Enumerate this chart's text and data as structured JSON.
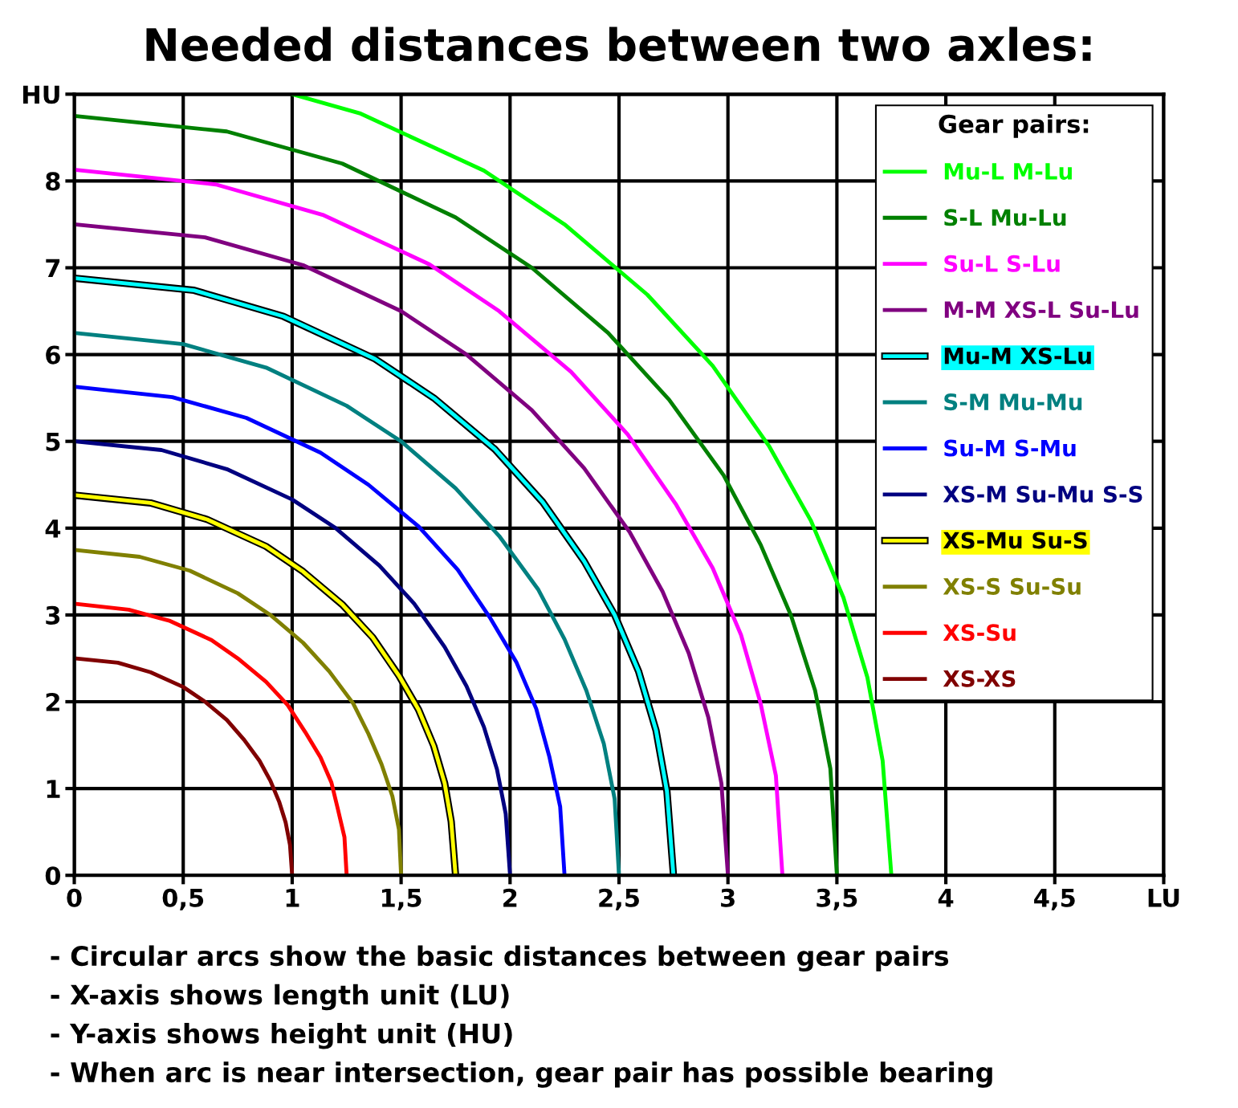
{
  "chart_data": {
    "type": "line",
    "title": "Needed distances between two axles:",
    "xlim": [
      0,
      5
    ],
    "ylim": [
      0,
      9
    ],
    "xticks": [
      0,
      {
        "value": 0.5,
        "label": "0,5"
      },
      1,
      {
        "value": 1.5,
        "label": "1,5"
      },
      2,
      {
        "value": 2.5,
        "label": "2,5"
      },
      3,
      {
        "value": 3.5,
        "label": "3,5"
      },
      4,
      {
        "value": 4.5,
        "label": "4,5"
      },
      {
        "value": 5,
        "label": "LU"
      }
    ],
    "yticks": [
      0,
      1,
      2,
      3,
      4,
      5,
      6,
      7,
      8,
      {
        "value": 9,
        "label": "HU"
      }
    ],
    "grid": true,
    "legend": "top right",
    "legend_title": "Gear pairs:",
    "marker": "none",
    "line_style": "solid",
    "series": [
      {
        "name": "Mu-L M-Lu",
        "color": "#00ff00",
        "x": [
          1,
          1.31,
          1.88,
          2.25,
          2.63,
          2.93,
          3.19,
          3.38,
          3.53,
          3.64,
          3.71,
          3.75
        ],
        "values": [
          9,
          8.78,
          8.12,
          7.5,
          6.69,
          5.87,
          4.94,
          4.09,
          3.2,
          2.28,
          1.32,
          0
        ]
      },
      {
        "name": "S-L Mu-Lu",
        "color": "#008000",
        "x": [
          0,
          0.7,
          1.23,
          1.75,
          2.1,
          2.45,
          2.73,
          2.98,
          3.15,
          3.29,
          3.4,
          3.47,
          3.5
        ],
        "values": [
          8.75,
          8.57,
          8.2,
          7.58,
          7,
          6.25,
          5.48,
          4.61,
          3.81,
          2.99,
          2.13,
          1.23,
          0
        ]
      },
      {
        "name": "Su-L S-Lu",
        "color": "#ff00ff",
        "x": [
          0,
          0.65,
          1.14,
          1.63,
          1.95,
          2.28,
          2.54,
          2.76,
          2.93,
          3.06,
          3.15,
          3.22,
          3.25
        ],
        "values": [
          8.13,
          7.96,
          7.61,
          7.04,
          6.5,
          5.8,
          5.08,
          4.28,
          3.54,
          2.77,
          1.98,
          1.15,
          0
        ]
      },
      {
        "name": "M-M XS-L Su-Lu",
        "color": "#800080",
        "x": [
          0,
          0.6,
          1.05,
          1.5,
          1.8,
          2.1,
          2.34,
          2.55,
          2.7,
          2.82,
          2.91,
          2.97,
          3
        ],
        "values": [
          7.5,
          7.35,
          7.03,
          6.5,
          6,
          5.36,
          4.69,
          3.95,
          3.27,
          2.56,
          1.82,
          1.06,
          0
        ]
      },
      {
        "name": "Mu-M XS-Lu",
        "color": "#00ffff",
        "x": [
          0,
          0.55,
          0.96,
          1.38,
          1.65,
          1.93,
          2.15,
          2.34,
          2.48,
          2.59,
          2.67,
          2.72,
          2.75
        ],
        "values": [
          6.88,
          6.74,
          6.44,
          5.95,
          5.5,
          4.91,
          4.3,
          3.62,
          3.0,
          2.35,
          1.67,
          0.97,
          0
        ]
      },
      {
        "name": "S-M Mu-Mu",
        "color": "#008080",
        "x": [
          0,
          0.5,
          0.88,
          1.25,
          1.5,
          1.75,
          1.95,
          2.13,
          2.25,
          2.35,
          2.43,
          2.48,
          2.5
        ],
        "values": [
          6.25,
          6.12,
          5.85,
          5.41,
          5,
          4.46,
          3.91,
          3.29,
          2.72,
          2.13,
          1.52,
          0.88,
          0
        ]
      },
      {
        "name": "Su-M S-Mu",
        "color": "#0000ff",
        "x": [
          0,
          0.45,
          0.79,
          1.13,
          1.35,
          1.58,
          1.76,
          1.91,
          2.03,
          2.12,
          2.18,
          2.23,
          2.25
        ],
        "values": [
          5.63,
          5.51,
          5.27,
          4.87,
          4.5,
          4.02,
          3.52,
          2.96,
          2.45,
          1.92,
          1.37,
          0.79,
          0
        ]
      },
      {
        "name": "XS-M Su-Mu S-S",
        "color": "#000080",
        "x": [
          0,
          0.4,
          0.7,
          1,
          1.2,
          1.4,
          1.56,
          1.7,
          1.8,
          1.88,
          1.94,
          1.98,
          2
        ],
        "values": [
          5,
          4.9,
          4.68,
          4.33,
          4,
          3.57,
          3.13,
          2.63,
          2.18,
          1.71,
          1.22,
          0.71,
          0
        ]
      },
      {
        "name": "XS-Mu Su-S",
        "color": "#ffff00",
        "x": [
          0,
          0.35,
          0.61,
          0.88,
          1.05,
          1.23,
          1.37,
          1.49,
          1.58,
          1.65,
          1.7,
          1.73,
          1.75
        ],
        "values": [
          4.38,
          4.29,
          4.1,
          3.79,
          3.5,
          3.12,
          2.74,
          2.3,
          1.91,
          1.49,
          1.06,
          0.62,
          0
        ]
      },
      {
        "name": "XS-S Su-Su",
        "color": "#808000",
        "x": [
          0,
          0.3,
          0.53,
          0.75,
          0.9,
          1.05,
          1.17,
          1.28,
          1.35,
          1.41,
          1.46,
          1.49,
          1.5
        ],
        "values": [
          3.75,
          3.67,
          3.51,
          3.25,
          3.0,
          2.68,
          2.35,
          1.98,
          1.63,
          1.28,
          0.91,
          0.53,
          0
        ]
      },
      {
        "name": "XS-Su",
        "color": "#ff0000",
        "x": [
          0,
          0.25,
          0.44,
          0.63,
          0.75,
          0.88,
          0.98,
          1.06,
          1.13,
          1.18,
          1.21,
          1.24,
          1.25
        ],
        "values": [
          3.13,
          3.06,
          2.93,
          2.71,
          2.5,
          2.23,
          1.96,
          1.65,
          1.36,
          1.07,
          0.76,
          0.44,
          0
        ]
      },
      {
        "name": "XS-XS",
        "color": "#800000",
        "x": [
          0,
          0.2,
          0.35,
          0.5,
          0.6,
          0.7,
          0.78,
          0.85,
          0.9,
          0.94,
          0.97,
          0.99,
          1
        ],
        "values": [
          2.5,
          2.45,
          2.34,
          2.17,
          2.0,
          1.79,
          1.56,
          1.32,
          1.09,
          0.85,
          0.61,
          0.35,
          0
        ]
      }
    ],
    "annotations": [
      "- Circular arcs show the basic distances between gear pairs",
      "- X-axis shows length unit (LU)",
      "- Y-axis shows height unit (HU)",
      "- When arc is near intersection, gear pair has possible bearing"
    ]
  }
}
